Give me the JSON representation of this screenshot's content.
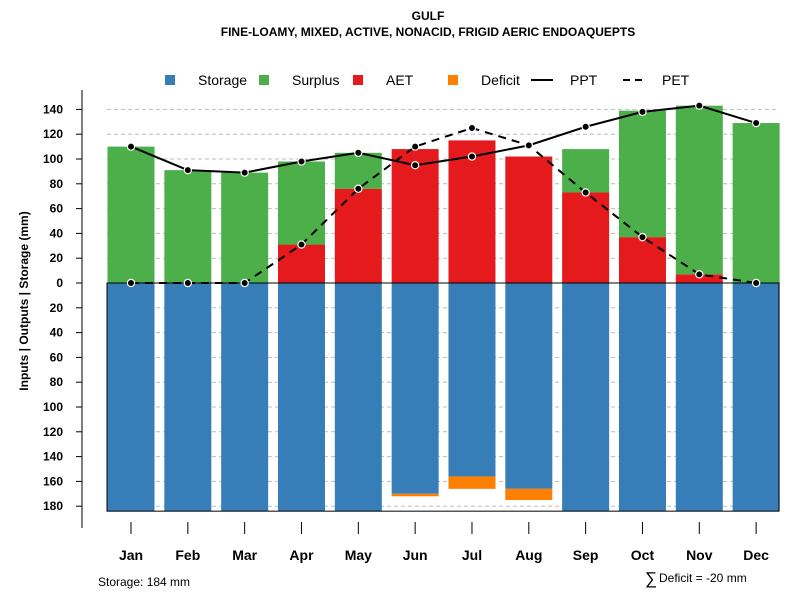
{
  "chart_data": {
    "type": "bar",
    "title": "GULF",
    "subtitle": "FINE-LOAMY, MIXED, ACTIVE, NONACID, FRIGID AERIC ENDOAQUEPTS",
    "ylabel": "Inputs | Outputs | Storage    (mm)",
    "categories": [
      "Jan",
      "Feb",
      "Mar",
      "Apr",
      "May",
      "Jun",
      "Jul",
      "Aug",
      "Sep",
      "Oct",
      "Nov",
      "Dec"
    ],
    "ylim_up": [
      0,
      140
    ],
    "ylim_down": [
      0,
      180
    ],
    "yticks_up": [
      "0",
      "20",
      "40",
      "60",
      "80",
      "100",
      "120",
      "140"
    ],
    "yticks_down": [
      "20",
      "40",
      "60",
      "80",
      "100",
      "120",
      "140",
      "160",
      "180"
    ],
    "legend": [
      {
        "name": "Storage",
        "color": "#377EB8",
        "kind": "box"
      },
      {
        "name": "Surplus",
        "color": "#4DAF4A",
        "kind": "box"
      },
      {
        "name": "AET",
        "color": "#E41A1C",
        "kind": "box"
      },
      {
        "name": "Deficit",
        "color": "#FF7F00",
        "kind": "box"
      },
      {
        "name": "PPT",
        "color": "#000000",
        "kind": "solid"
      },
      {
        "name": "PET",
        "color": "#000000",
        "kind": "dashed"
      }
    ],
    "series": [
      {
        "name": "AET",
        "values": [
          0,
          0,
          0,
          31,
          76,
          108,
          115,
          102,
          73,
          37,
          7,
          0
        ]
      },
      {
        "name": "Surplus",
        "values": [
          110,
          91,
          89,
          67,
          29,
          0,
          0,
          0,
          35,
          102,
          136,
          129
        ]
      },
      {
        "name": "Storage",
        "values": [
          184,
          184,
          184,
          184,
          184,
          170,
          156,
          166,
          184,
          184,
          184,
          184
        ]
      },
      {
        "name": "Deficit",
        "values": [
          0,
          0,
          0,
          0,
          0,
          2,
          10,
          9,
          0,
          0,
          0,
          0
        ]
      },
      {
        "name": "PPT",
        "values": [
          110,
          91,
          89,
          98,
          105,
          95,
          102,
          111,
          126,
          138,
          143,
          129
        ]
      },
      {
        "name": "PET",
        "values": [
          0,
          0,
          0,
          31,
          76,
          110,
          125,
          111,
          73,
          37,
          7,
          0
        ]
      }
    ],
    "storage_capacity": 184,
    "colors": {
      "storage": "#377EB8",
      "surplus": "#4DAF4A",
      "aet": "#E41A1C",
      "deficit": "#FF7F00",
      "grid": "#bebebe"
    }
  },
  "footer": {
    "storage_text": "Storage: 184 mm",
    "deficit_symbol": "∑",
    "deficit_text": "Deficit = -20 mm"
  }
}
